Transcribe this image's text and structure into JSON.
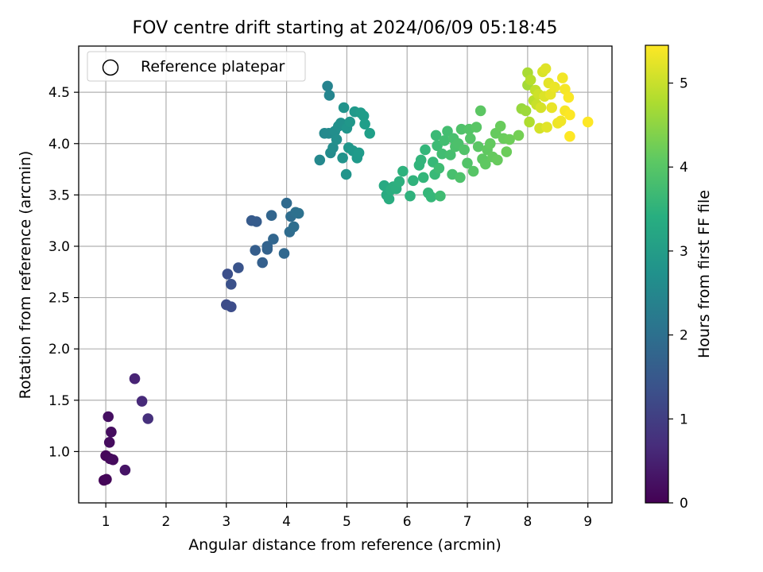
{
  "chart_data": {
    "type": "scatter",
    "title": "FOV centre drift starting at 2024/06/09 05:18:45",
    "xlabel": "Angular distance from reference (arcmin)",
    "ylabel": "Rotation from reference (arcmin)",
    "xlim": [
      0.55,
      9.4
    ],
    "ylim": [
      0.5,
      4.95
    ],
    "xticks": [
      1,
      2,
      3,
      4,
      5,
      6,
      7,
      8,
      9
    ],
    "yticks": [
      1.0,
      1.5,
      2.0,
      2.5,
      3.0,
      3.5,
      4.0,
      4.5
    ],
    "ytick_labels": [
      "1.0",
      "1.5",
      "2.0",
      "2.5",
      "3.0",
      "3.5",
      "4.0",
      "4.5"
    ],
    "grid": true,
    "legend": {
      "placement": "top-left",
      "entries": [
        "Reference platepar"
      ]
    },
    "colorbar": {
      "label": "Hours from first FF file",
      "colormap": "viridis",
      "range": [
        0,
        5.45
      ],
      "ticks": [
        0,
        1,
        2,
        3,
        4,
        5
      ]
    },
    "series": [
      {
        "points": [
          [
            0.97,
            0.72,
            0.05
          ],
          [
            1.01,
            0.73,
            0.07
          ],
          [
            1.0,
            0.96,
            0.1
          ],
          [
            1.07,
            0.93,
            0.12
          ],
          [
            1.12,
            0.92,
            0.15
          ],
          [
            1.06,
            1.09,
            0.17
          ],
          [
            1.09,
            1.19,
            0.19
          ],
          [
            1.04,
            1.34,
            0.22
          ],
          [
            1.32,
            0.82,
            0.3
          ],
          [
            1.48,
            1.71,
            0.55
          ],
          [
            1.6,
            1.49,
            0.65
          ],
          [
            1.7,
            1.32,
            0.75
          ],
          [
            3.0,
            2.43,
            1.25
          ],
          [
            3.08,
            2.41,
            1.28
          ],
          [
            3.02,
            2.73,
            1.32
          ],
          [
            3.08,
            2.63,
            1.36
          ],
          [
            3.2,
            2.79,
            1.42
          ],
          [
            3.42,
            3.25,
            1.55
          ],
          [
            3.5,
            3.24,
            1.58
          ],
          [
            3.48,
            2.96,
            1.62
          ],
          [
            3.6,
            2.84,
            1.65
          ],
          [
            3.68,
            2.97,
            1.7
          ],
          [
            3.68,
            3.0,
            1.72
          ],
          [
            3.75,
            3.3,
            1.75
          ],
          [
            3.78,
            3.07,
            1.78
          ],
          [
            3.96,
            2.93,
            1.82
          ],
          [
            4.0,
            3.42,
            1.86
          ],
          [
            4.05,
            3.14,
            1.9
          ],
          [
            4.07,
            3.29,
            1.93
          ],
          [
            4.12,
            3.19,
            1.96
          ],
          [
            4.15,
            3.33,
            2.0
          ],
          [
            4.2,
            3.32,
            2.02
          ],
          [
            4.68,
            4.56,
            2.45
          ],
          [
            4.71,
            4.47,
            2.48
          ],
          [
            4.55,
            3.84,
            2.55
          ],
          [
            4.63,
            4.1,
            2.58
          ],
          [
            4.7,
            4.1,
            2.6
          ],
          [
            4.73,
            3.91,
            2.62
          ],
          [
            4.77,
            3.96,
            2.65
          ],
          [
            4.8,
            4.12,
            2.68
          ],
          [
            4.83,
            4.04,
            2.7
          ],
          [
            4.86,
            4.17,
            2.72
          ],
          [
            4.9,
            4.2,
            2.75
          ],
          [
            4.95,
            4.35,
            2.78
          ],
          [
            4.93,
            3.86,
            2.8
          ],
          [
            4.99,
            3.7,
            2.82
          ],
          [
            5.0,
            4.15,
            2.84
          ],
          [
            5.03,
            3.96,
            2.86
          ],
          [
            5.05,
            4.21,
            2.88
          ],
          [
            5.1,
            3.93,
            2.9
          ],
          [
            5.13,
            4.31,
            2.92
          ],
          [
            5.17,
            3.86,
            2.94
          ],
          [
            5.2,
            3.91,
            2.96
          ],
          [
            5.23,
            4.3,
            2.98
          ],
          [
            5.28,
            4.27,
            3.0
          ],
          [
            5.3,
            4.19,
            3.02
          ],
          [
            5.38,
            4.1,
            3.05
          ],
          [
            5.62,
            3.59,
            3.3
          ],
          [
            5.66,
            3.5,
            3.33
          ],
          [
            5.7,
            3.46,
            3.36
          ],
          [
            5.73,
            3.55,
            3.38
          ],
          [
            5.77,
            3.58,
            3.4
          ],
          [
            5.82,
            3.56,
            3.42
          ],
          [
            5.87,
            3.63,
            3.45
          ],
          [
            5.93,
            3.73,
            3.48
          ],
          [
            6.05,
            3.49,
            3.5
          ],
          [
            6.1,
            3.64,
            3.52
          ],
          [
            6.2,
            3.79,
            3.55
          ],
          [
            6.23,
            3.84,
            3.57
          ],
          [
            6.27,
            3.67,
            3.58
          ],
          [
            6.3,
            3.94,
            3.6
          ],
          [
            6.35,
            3.52,
            3.62
          ],
          [
            6.4,
            3.48,
            3.64
          ],
          [
            6.43,
            3.82,
            3.66
          ],
          [
            6.46,
            3.7,
            3.68
          ],
          [
            6.48,
            4.08,
            3.7
          ],
          [
            6.5,
            3.98,
            3.72
          ],
          [
            6.53,
            3.76,
            3.74
          ],
          [
            6.55,
            3.49,
            3.75
          ],
          [
            6.58,
            3.9,
            3.77
          ],
          [
            6.62,
            4.03,
            3.79
          ],
          [
            6.67,
            4.12,
            3.8
          ],
          [
            6.72,
            3.89,
            3.82
          ],
          [
            6.75,
            3.7,
            3.84
          ],
          [
            6.77,
            4.05,
            3.85
          ],
          [
            6.8,
            3.97,
            3.87
          ],
          [
            6.85,
            4.0,
            3.89
          ],
          [
            6.88,
            3.67,
            3.9
          ],
          [
            6.9,
            4.14,
            3.92
          ],
          [
            6.95,
            3.94,
            3.94
          ],
          [
            7.0,
            3.81,
            3.95
          ],
          [
            7.03,
            4.14,
            3.97
          ],
          [
            7.05,
            4.05,
            3.98
          ],
          [
            7.1,
            3.73,
            4.0
          ],
          [
            7.15,
            4.16,
            4.02
          ],
          [
            7.18,
            3.97,
            4.04
          ],
          [
            7.22,
            4.32,
            4.05
          ],
          [
            7.25,
            3.85,
            4.07
          ],
          [
            7.3,
            3.8,
            4.09
          ],
          [
            7.33,
            3.94,
            4.1
          ],
          [
            7.38,
            4.0,
            4.12
          ],
          [
            7.42,
            3.87,
            4.14
          ],
          [
            7.47,
            4.1,
            4.15
          ],
          [
            7.5,
            3.84,
            4.17
          ],
          [
            7.55,
            4.17,
            4.19
          ],
          [
            7.6,
            4.05,
            4.2
          ],
          [
            7.65,
            3.92,
            4.22
          ],
          [
            7.7,
            4.04,
            4.24
          ],
          [
            7.85,
            4.08,
            4.3
          ],
          [
            7.9,
            4.34,
            4.6
          ],
          [
            7.97,
            4.32,
            4.65
          ],
          [
            8.0,
            4.57,
            4.7
          ],
          [
            8.0,
            4.69,
            4.75
          ],
          [
            8.03,
            4.21,
            4.8
          ],
          [
            8.05,
            4.62,
            4.85
          ],
          [
            8.1,
            4.42,
            4.9
          ],
          [
            8.13,
            4.52,
            4.95
          ],
          [
            8.15,
            4.38,
            5.0
          ],
          [
            8.18,
            4.48,
            5.05
          ],
          [
            8.2,
            4.15,
            5.1
          ],
          [
            8.22,
            4.35,
            5.12
          ],
          [
            8.25,
            4.7,
            5.15
          ],
          [
            8.28,
            4.46,
            5.18
          ],
          [
            8.3,
            4.73,
            5.2
          ],
          [
            8.32,
            4.16,
            5.22
          ],
          [
            8.35,
            4.59,
            5.24
          ],
          [
            8.38,
            4.48,
            5.26
          ],
          [
            8.4,
            4.35,
            5.28
          ],
          [
            8.45,
            4.55,
            5.3
          ],
          [
            8.5,
            4.2,
            5.32
          ],
          [
            8.55,
            4.22,
            5.34
          ],
          [
            8.58,
            4.64,
            5.36
          ],
          [
            8.62,
            4.53,
            5.38
          ],
          [
            8.62,
            4.32,
            5.4
          ],
          [
            8.68,
            4.45,
            5.42
          ],
          [
            8.7,
            4.28,
            5.44
          ],
          [
            8.7,
            4.07,
            5.45
          ],
          [
            9.0,
            4.21,
            5.45
          ]
        ],
        "point_format": [
          "x_arcmin",
          "y_arcmin",
          "hours"
        ]
      }
    ]
  }
}
